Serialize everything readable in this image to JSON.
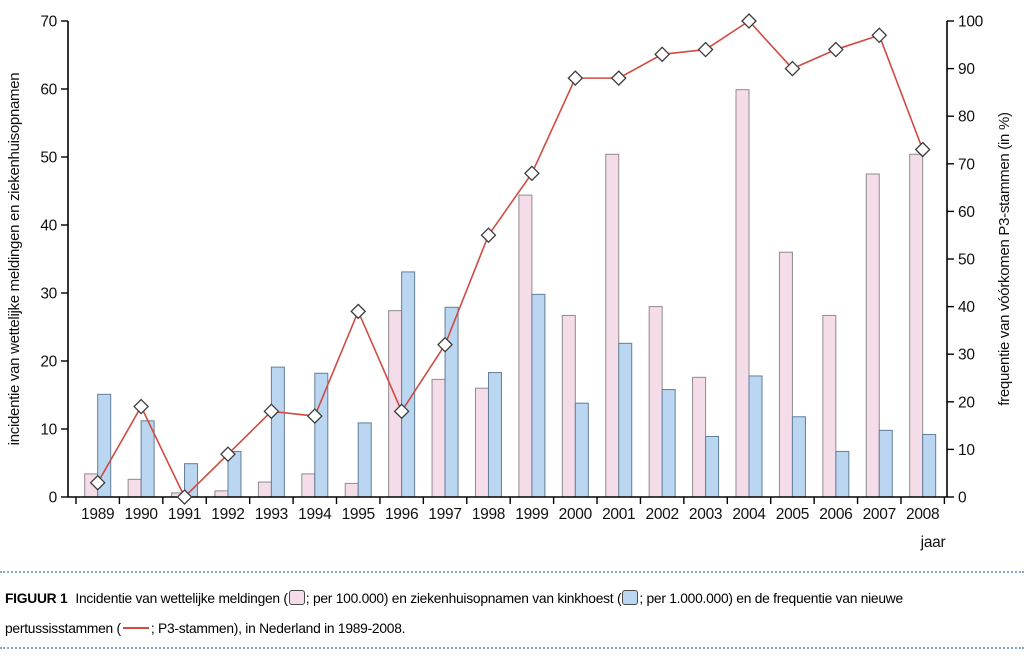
{
  "figure": {
    "caption": {
      "label": "FIGUUR 1",
      "t1": "Incidentie van wettelijke meldingen (",
      "t2": "; per 100.000) en ziekenhuisopnamen van kinkhoest  (",
      "t3": "; per 1.000.000) en de frequentie van nieuwe",
      "t4": "pertussisstammen (",
      "t5": "; P3-stammen), in Nederland in 1989-2008."
    },
    "accent_colors": {
      "caption_border": "#7fa8cc",
      "line_red": "#d04b42"
    }
  },
  "chart_data": {
    "type": "combo-bar-line",
    "title": "",
    "categories": [
      "1989",
      "1990",
      "1991",
      "1992",
      "1993",
      "1994",
      "1995",
      "1996",
      "1997",
      "1998",
      "1999",
      "2000",
      "2001",
      "2002",
      "2003",
      "2004",
      "2005",
      "2006",
      "2007",
      "2008"
    ],
    "series": [
      {
        "name": "wettelijke meldingen (per 100.000)",
        "type": "bar",
        "axis": "left",
        "fill": "#f4dce8",
        "stroke": "#908a92",
        "values": [
          3.4,
          2.6,
          0.6,
          0.9,
          2.2,
          3.4,
          2.0,
          27.4,
          17.3,
          16.0,
          44.4,
          26.7,
          50.4,
          28.0,
          17.6,
          59.9,
          36.0,
          26.7,
          47.5,
          50.4
        ]
      },
      {
        "name": "ziekenhuisopnamen van kinkhoest (per 1.000.000)",
        "type": "bar",
        "axis": "left",
        "fill": "#bad6f0",
        "stroke": "#637e9b",
        "values": [
          15.1,
          11.2,
          4.9,
          6.7,
          19.1,
          18.2,
          10.9,
          33.1,
          27.9,
          18.3,
          29.8,
          13.8,
          22.6,
          15.8,
          8.9,
          17.8,
          11.8,
          6.7,
          9.8,
          9.2
        ]
      },
      {
        "name": "P3-stammen",
        "type": "line",
        "axis": "right",
        "stroke": "#d04b42",
        "marker": "diamond",
        "marker_fill": "#ffffff",
        "marker_stroke": "#3c3c3c",
        "values": [
          3,
          19,
          0,
          9,
          18,
          17,
          39,
          18,
          32,
          55,
          68,
          88,
          88,
          93,
          94,
          100,
          90,
          94,
          97,
          73
        ]
      }
    ],
    "left_axis": {
      "label": "incidentie van wettelijke meldingen en ziekenhuisopnamen",
      "min": 0,
      "max": 70,
      "step": 10
    },
    "right_axis": {
      "label": "frequentie van vóórkomen P3-stammen (in %)",
      "min": 0,
      "max": 100,
      "step": 10
    },
    "x_axis": {
      "label": "jaar"
    },
    "grid": false,
    "legend": "none"
  }
}
